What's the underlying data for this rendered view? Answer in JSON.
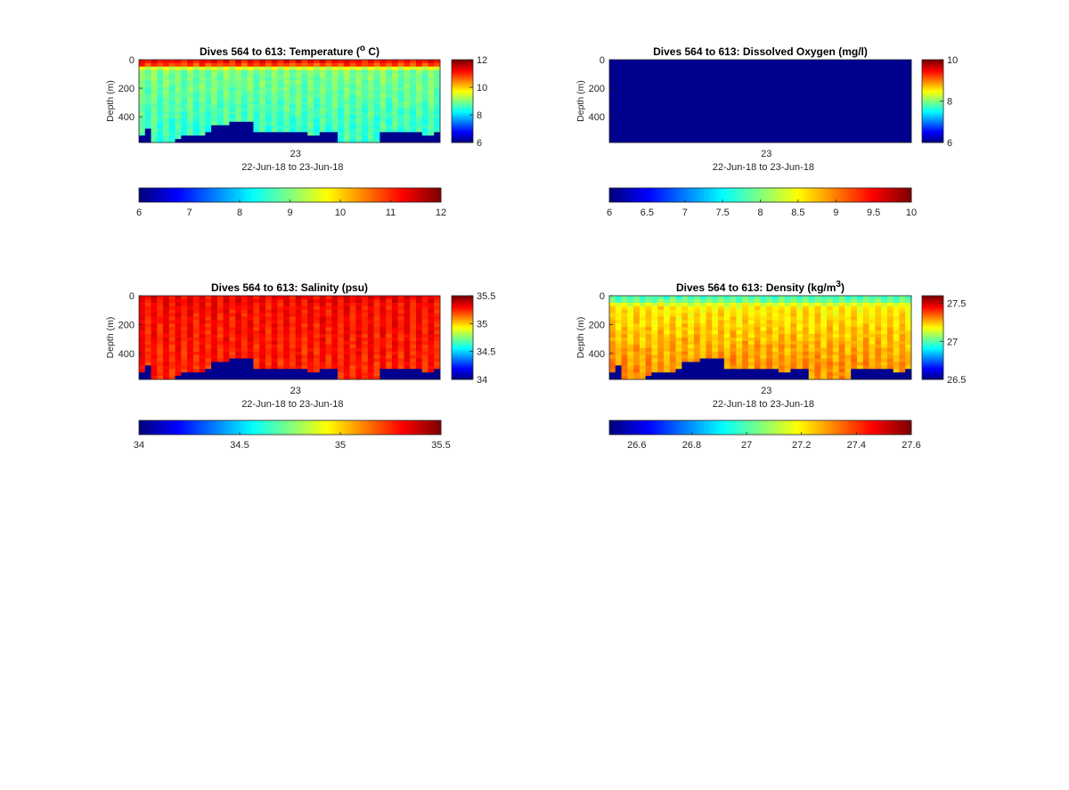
{
  "chart_data": [
    {
      "type": "heatmap",
      "title": "Dives 564 to 613: Temperature (",
      "title_sup": "o",
      "title_tail": " C)",
      "ylabel": "Depth (m)",
      "yticks": [
        "0",
        "200",
        "400"
      ],
      "ylim": [
        0,
        580
      ],
      "xtick": "23",
      "xlabel": "22-Jun-18 to 23-Jun-18",
      "clim": [
        6,
        12
      ],
      "vert_colorbar_ticks": [
        "12",
        "10",
        "8",
        "6"
      ],
      "horiz_colorbar_ticks": [
        "6",
        "7",
        "8",
        "9",
        "10",
        "11",
        "12"
      ],
      "profile": {
        "surface": 11.2,
        "thermocline": 9.0,
        "deep": 8.6
      }
    },
    {
      "type": "heatmap",
      "title": "Dives 564 to 613: Dissolved Oxygen (mg/l)",
      "ylabel": "Depth (m)",
      "yticks": [
        "0",
        "200",
        "400"
      ],
      "ylim": [
        0,
        580
      ],
      "xtick": "23",
      "xlabel": "22-Jun-18 to 23-Jun-18",
      "clim": [
        6,
        10
      ],
      "vert_colorbar_ticks": [
        "10",
        "8",
        "6"
      ],
      "horiz_colorbar_ticks": [
        "6",
        "6.5",
        "7",
        "7.5",
        "8",
        "8.5",
        "9",
        "9.5",
        "10"
      ],
      "profile": {
        "surface": 6,
        "thermocline": 6,
        "deep": 6
      },
      "uniform": true
    },
    {
      "type": "heatmap",
      "title": "Dives 564 to 613: Salinity (psu)",
      "ylabel": "Depth (m)",
      "yticks": [
        "0",
        "200",
        "400"
      ],
      "ylim": [
        0,
        580
      ],
      "xtick": "23",
      "xlabel": "22-Jun-18 to 23-Jun-18",
      "clim": [
        34,
        35.5
      ],
      "vert_colorbar_ticks": [
        "35.5",
        "35",
        "34.5",
        "34"
      ],
      "horiz_colorbar_ticks": [
        "34",
        "34.5",
        "35",
        "35.5"
      ],
      "profile": {
        "surface": 35.33,
        "thermocline": 35.3,
        "deep": 35.27
      }
    },
    {
      "type": "heatmap",
      "title": "Dives 564 to 613: Density (kg/m",
      "title_sup": "3",
      "title_tail": ")",
      "ylabel": "Depth (m)",
      "yticks": [
        "0",
        "200",
        "400"
      ],
      "ylim": [
        0,
        580
      ],
      "xtick": "23",
      "xlabel": "22-Jun-18 to 23-Jun-18",
      "clim": [
        26.5,
        27.6
      ],
      "vert_colorbar_ticks": [
        "27.5",
        "27",
        "26.5"
      ],
      "horiz_colorbar_ticks": [
        "26.6",
        "26.8",
        "27",
        "27.2",
        "27.4",
        "27.6"
      ],
      "profile": {
        "surface": 27.0,
        "thermocline": 27.2,
        "deep": 27.3
      }
    }
  ],
  "seafloor_depth_m": [
    520,
    490,
    580,
    580,
    580,
    580,
    560,
    520,
    520,
    540,
    530,
    510,
    470,
    470,
    470,
    430,
    440,
    440,
    440,
    500,
    500,
    500,
    510,
    510,
    500,
    500,
    500,
    500,
    520,
    520,
    500,
    500,
    500,
    570,
    570,
    580,
    580,
    580,
    580,
    580,
    500,
    500,
    500,
    500,
    510,
    510,
    510,
    540,
    540,
    510
  ]
}
